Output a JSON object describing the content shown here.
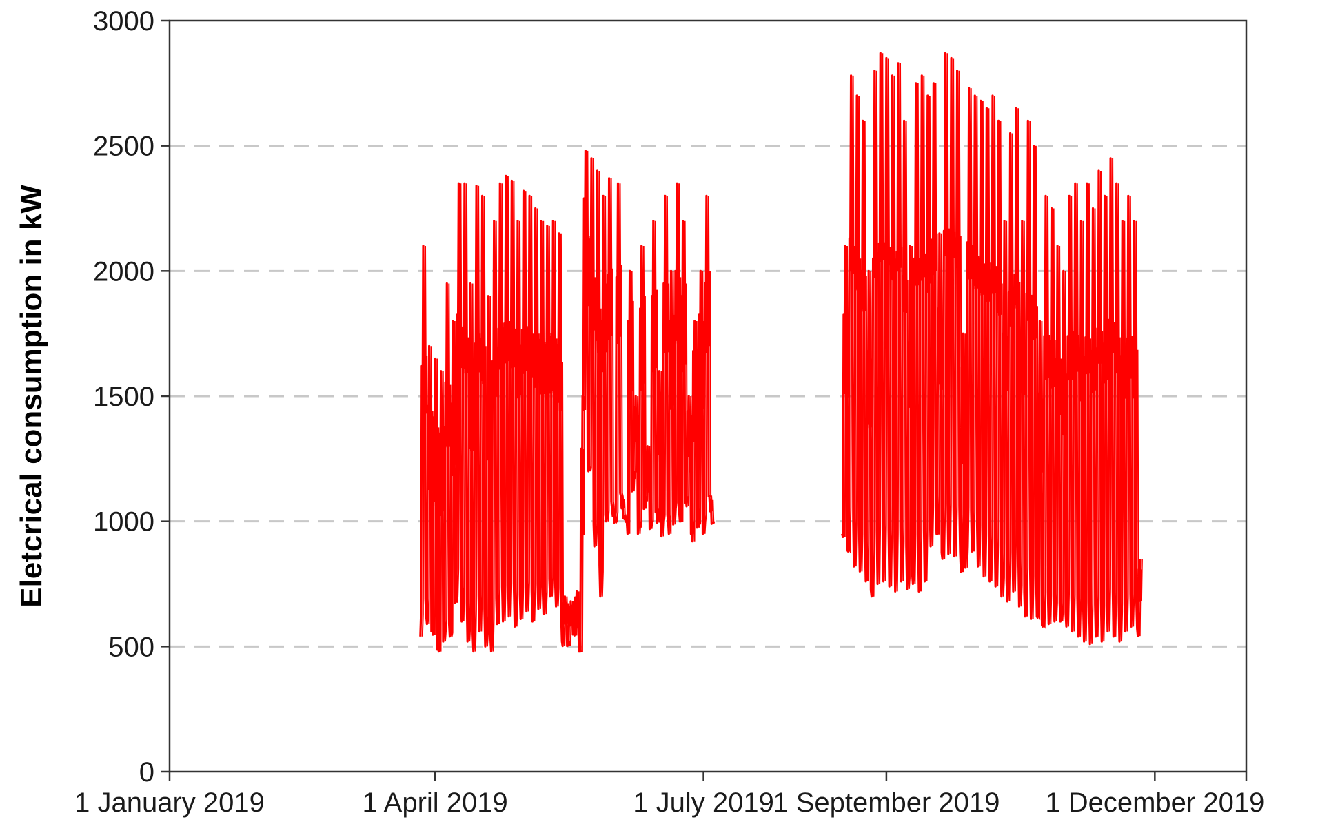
{
  "chart_data": {
    "type": "line",
    "title": "",
    "xlabel": "",
    "ylabel": "Eletcrical consumption in kW",
    "ylim": [
      0,
      3000
    ],
    "xlim": [
      "2019-01-01",
      "2020-01-01"
    ],
    "yticks": [
      0,
      500,
      1000,
      1500,
      2000,
      2500,
      3000
    ],
    "xticks": [
      {
        "date": "2019-01-01",
        "label": "1 January 2019"
      },
      {
        "date": "2019-04-01",
        "label": "1 April 2019"
      },
      {
        "date": "2019-07-01",
        "label": "1 July 2019"
      },
      {
        "date": "2019-09-01",
        "label": "1 September 2019"
      },
      {
        "date": "2019-12-01",
        "label": "1 December 2019"
      }
    ],
    "grid": {
      "horizontal": true,
      "style": "dashed",
      "vertical": false
    },
    "legend": "none",
    "colors": {
      "line": "#ff0000",
      "grid": "#c8c8c8",
      "axis": "#333333"
    },
    "series": [
      {
        "color": "#ff0000",
        "segments": [
          {
            "x": [
              "2019-03-27",
              "2019-03-28",
              "2019-03-29",
              "2019-03-30",
              "2019-03-31",
              "2019-04-01",
              "2019-04-02",
              "2019-04-03",
              "2019-04-04",
              "2019-04-05",
              "2019-04-06",
              "2019-04-07",
              "2019-04-08",
              "2019-04-09",
              "2019-04-10",
              "2019-04-11",
              "2019-04-12",
              "2019-04-13",
              "2019-04-14",
              "2019-04-15",
              "2019-04-16",
              "2019-04-17",
              "2019-04-18",
              "2019-04-19",
              "2019-04-20",
              "2019-04-21",
              "2019-04-22",
              "2019-04-23",
              "2019-04-24",
              "2019-04-25",
              "2019-04-26",
              "2019-04-27",
              "2019-04-28",
              "2019-04-29",
              "2019-04-30",
              "2019-05-01",
              "2019-05-02",
              "2019-05-03",
              "2019-05-04",
              "2019-05-05",
              "2019-05-06",
              "2019-05-07",
              "2019-05-08",
              "2019-05-09",
              "2019-05-10",
              "2019-05-11",
              "2019-05-12",
              "2019-05-13",
              "2019-05-14",
              "2019-05-15",
              "2019-05-16",
              "2019-05-17",
              "2019-05-18",
              "2019-05-19",
              "2019-05-20",
              "2019-05-21",
              "2019-05-22",
              "2019-05-23",
              "2019-05-24",
              "2019-05-25",
              "2019-05-26",
              "2019-05-27",
              "2019-05-28",
              "2019-05-29",
              "2019-05-30",
              "2019-05-31",
              "2019-06-01",
              "2019-06-02",
              "2019-06-03",
              "2019-06-04",
              "2019-06-05",
              "2019-06-06",
              "2019-06-07",
              "2019-06-08",
              "2019-06-09",
              "2019-06-10",
              "2019-06-11",
              "2019-06-12",
              "2019-06-13",
              "2019-06-14",
              "2019-06-15",
              "2019-06-16",
              "2019-06-17",
              "2019-06-18",
              "2019-06-19",
              "2019-06-20",
              "2019-06-21",
              "2019-06-22",
              "2019-06-23",
              "2019-06-24",
              "2019-06-25",
              "2019-06-26",
              "2019-06-27",
              "2019-06-28",
              "2019-06-29",
              "2019-06-30",
              "2019-07-01",
              "2019-07-02",
              "2019-07-03",
              "2019-07-04"
            ],
            "y": [
              540,
              2100,
              620,
              1700,
              580,
              1650,
              500,
              1600,
              560,
              1950,
              540,
              1800,
              700,
              2350,
              600,
              2350,
              520,
              1950,
              480,
              2340,
              560,
              2300,
              500,
              1900,
              480,
              2200,
              590,
              2350,
              600,
              2380,
              620,
              2360,
              580,
              2200,
              610,
              2320,
              640,
              2300,
              600,
              2250,
              650,
              2200,
              630,
              2180,
              700,
              2200,
              660,
              2150,
              520,
              700,
              520,
              680,
              560,
              720,
              480,
              1500,
              2480,
              1200,
              2450,
              900,
              2400,
              700,
              2300,
              1000,
              2370,
              1050,
              1000,
              2350,
              1100,
              1020,
              1000,
              2000,
              1200,
              1500,
              1000,
              2100,
              1100,
              1300,
              1000,
              2200,
              1050,
              1600,
              1000,
              2300,
              1000,
              2000,
              1050,
              2350,
              1000,
              2200,
              1100,
              1500,
              1000,
              1800,
              1050,
              2000,
              1000,
              2300,
              1100,
              1000
            ],
            "note": ""
          },
          {
            "x": [],
            "y": []
          }
        ]
      }
    ]
  }
}
